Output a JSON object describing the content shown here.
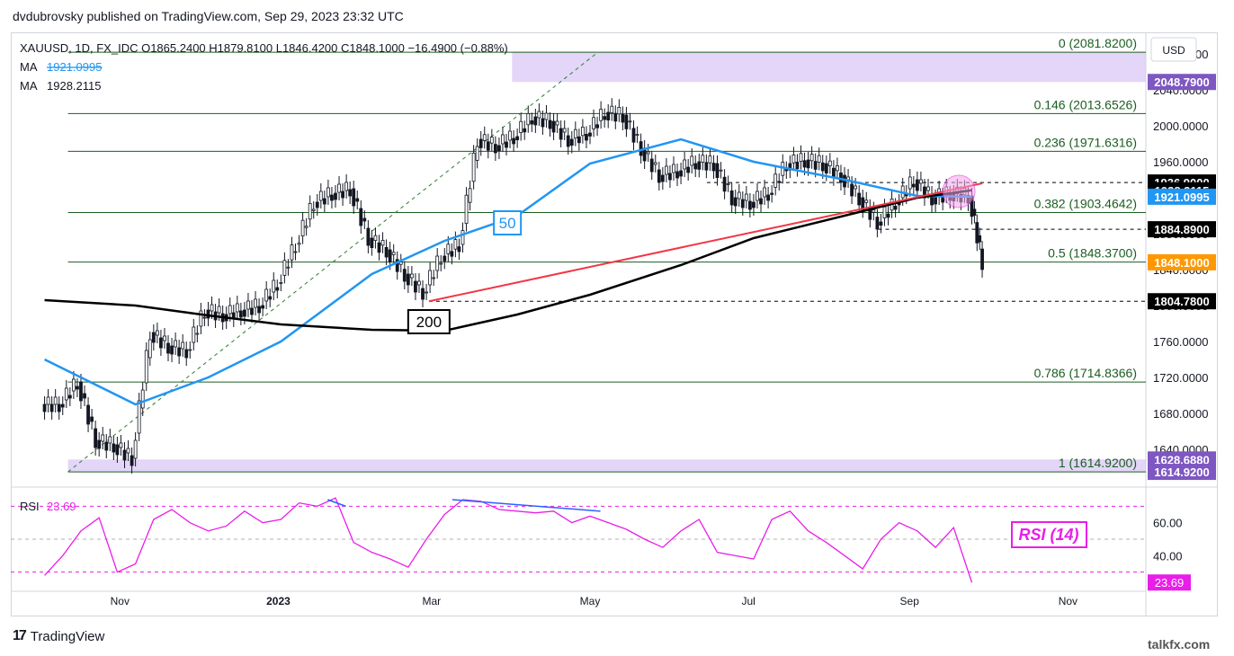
{
  "header": {
    "published": "dvdubrovsky published on TradingView.com, Sep 29, 2023 23:32 UTC"
  },
  "legend": {
    "symbol_line": "XAUUSD, 1D, FX_IDC  O1865.2400  H1879.8100  L1846.4200  C1848.1000  −16.4900 (−0.88%)",
    "ma1_label": "MA",
    "ma1_value": "1921.0995",
    "ma2_label": "MA",
    "ma2_value": "1928.2115"
  },
  "currency": "USD",
  "footer": {
    "brand": "TradingView",
    "watermark": "talkfx.com"
  },
  "colors": {
    "candle": "#131722",
    "ma50": "#2196f3",
    "ma200": "#000000",
    "trendline": "#f23645",
    "fib": "#1b5e20",
    "rsi": "#e91ee9",
    "divergence": "#2962ff",
    "zone": "#d9c8f5"
  },
  "chart_data": [
    {
      "type": "line",
      "title": "XAUUSD 1D",
      "ylim": [
        1600,
        2100
      ],
      "y_ticks": [
        "1640.0000",
        "1680.0000",
        "1720.0000",
        "1760.0000",
        "1800.0000",
        "1840.0000",
        "1880.0000",
        "1920.0000",
        "1960.0000",
        "2000.0000",
        "2040.0000",
        "2080.0000"
      ],
      "x_labels": [
        "Nov",
        "2023",
        "Mar",
        "May",
        "Jul",
        "Sep",
        "Nov"
      ],
      "close_series": {
        "x": [
          "2022-10-03",
          "2022-10-10",
          "2022-10-17",
          "2022-10-24",
          "2022-10-31",
          "2022-11-07",
          "2022-11-14",
          "2022-11-21",
          "2022-11-28",
          "2022-12-05",
          "2022-12-12",
          "2022-12-19",
          "2022-12-26",
          "2023-01-02",
          "2023-01-09",
          "2023-01-16",
          "2023-01-23",
          "2023-01-30",
          "2023-02-06",
          "2023-02-13",
          "2023-02-20",
          "2023-02-27",
          "2023-03-06",
          "2023-03-13",
          "2023-03-20",
          "2023-03-27",
          "2023-04-03",
          "2023-04-10",
          "2023-04-17",
          "2023-04-24",
          "2023-05-01",
          "2023-05-08",
          "2023-05-15",
          "2023-05-22",
          "2023-05-29",
          "2023-06-05",
          "2023-06-12",
          "2023-06-19",
          "2023-06-26",
          "2023-07-03",
          "2023-07-10",
          "2023-07-17",
          "2023-07-24",
          "2023-07-31",
          "2023-08-07",
          "2023-08-14",
          "2023-08-21",
          "2023-08-28",
          "2023-09-04",
          "2023-09-11",
          "2023-09-18",
          "2023-09-25"
        ],
        "y": [
          1690,
          1715,
          1650,
          1645,
          1630,
          1770,
          1755,
          1750,
          1795,
          1790,
          1795,
          1800,
          1825,
          1868,
          1915,
          1925,
          1930,
          1875,
          1862,
          1835,
          1815,
          1855,
          1868,
          1985,
          1978,
          1988,
          2010,
          2005,
          1985,
          1992,
          2015,
          2012,
          1975,
          1945,
          1950,
          1960,
          1958,
          1920,
          1915,
          1925,
          1958,
          1962,
          1958,
          1945,
          1920,
          1893,
          1915,
          1940,
          1920,
          1925,
          1922,
          1848.1
        ]
      },
      "series": [
        {
          "name": "MA",
          "values_label": "1921.0995",
          "points": {
            "x": [
              "2022-10-03",
              "2022-11-07",
              "2022-12-05",
              "2023-01-02",
              "2023-02-06",
              "2023-03-06",
              "2023-04-03",
              "2023-05-01",
              "2023-06-05",
              "2023-07-03",
              "2023-08-07",
              "2023-09-04",
              "2023-09-25"
            ],
            "y": [
              1740,
              1690,
              1720,
              1760,
              1835,
              1872,
              1900,
              1958,
              1985,
              1960,
              1940,
              1922,
              1921.1
            ]
          }
        },
        {
          "name": "MA",
          "values_label": "1928.2115",
          "points": {
            "x": [
              "2022-10-03",
              "2022-11-07",
              "2022-12-05",
              "2023-01-02",
              "2023-02-06",
              "2023-03-06",
              "2023-04-03",
              "2023-05-01",
              "2023-06-05",
              "2023-07-03",
              "2023-08-07",
              "2023-09-04",
              "2023-09-25"
            ],
            "y": [
              1806,
              1800,
              1789,
              1779,
              1773,
              1772,
              1790,
              1812,
              1845,
              1875,
              1900,
              1920,
              1928.2
            ]
          }
        }
      ],
      "fib_levels": [
        {
          "label": "0 (2081.8200)",
          "value": 2081.82
        },
        {
          "label": "0.146 (2013.6526)",
          "value": 2013.6526
        },
        {
          "label": "0.236 (1971.6316)",
          "value": 1971.6316
        },
        {
          "label": "0.382 (1903.4642)",
          "value": 1903.4642
        },
        {
          "label": "0.5 (1848.3700)",
          "value": 1848.37
        },
        {
          "label": "0.786 (1714.8366)",
          "value": 1714.8366
        },
        {
          "label": "1 (1614.9200)",
          "value": 1614.92
        }
      ],
      "price_tags": [
        {
          "text": "2048.7900",
          "value": 2048.79,
          "color": "#7e57c2"
        },
        {
          "text": "1936.9000",
          "value": 1936.9,
          "color": "#000000"
        },
        {
          "text": "1928.2115",
          "value": 1928.2115,
          "color": "#000000"
        },
        {
          "text": "1921.0995",
          "value": 1921.0995,
          "color": "#2196f3"
        },
        {
          "text": "1884.8900",
          "value": 1884.89,
          "color": "#000000"
        },
        {
          "text": "1848.1000",
          "value": 1848.1,
          "color": "#ff9800"
        },
        {
          "text": "1804.7800",
          "value": 1804.78,
          "color": "#000000"
        },
        {
          "text": "1628.6880",
          "value": 1628.688,
          "color": "#7e57c2"
        },
        {
          "text": "1614.9200",
          "value": 1614.92,
          "color": "#7e57c2"
        }
      ],
      "dashed_levels": [
        1936.9,
        1884.89,
        1804.78
      ],
      "zones": [
        [
          2048.79,
          2081.82
        ],
        [
          1614.92,
          1628.688
        ]
      ],
      "trendline": {
        "x": [
          "2023-02-28",
          "2023-09-29"
        ],
        "y": [
          1804.78,
          1936
        ]
      },
      "annotations": [
        "50",
        "200"
      ]
    },
    {
      "type": "line",
      "title": "RSI",
      "ylim": [
        20,
        80
      ],
      "y_ticks": [
        "40.00",
        "60.00"
      ],
      "levels": [
        70,
        50,
        30
      ],
      "last_value": "23.69",
      "badge": "RSI (14)",
      "series": [
        {
          "name": "RSI",
          "values": [
            28,
            40,
            55,
            63,
            30,
            35,
            62,
            68,
            60,
            55,
            58,
            67,
            60,
            62,
            72,
            70,
            75,
            48,
            42,
            38,
            33,
            50,
            65,
            74,
            73,
            68,
            67,
            66,
            67,
            60,
            64,
            60,
            56,
            50,
            45,
            55,
            62,
            42,
            40,
            38,
            62,
            67,
            55,
            48,
            40,
            32,
            50,
            60,
            55,
            45,
            57,
            23.69
          ]
        }
      ],
      "divergence": [
        {
          "x": [
            "2023-01-20",
            "2023-01-27"
          ],
          "y": [
            74,
            70
          ]
        },
        {
          "x": [
            "2023-03-09",
            "2023-05-05"
          ],
          "y": [
            74,
            67
          ]
        }
      ]
    }
  ]
}
